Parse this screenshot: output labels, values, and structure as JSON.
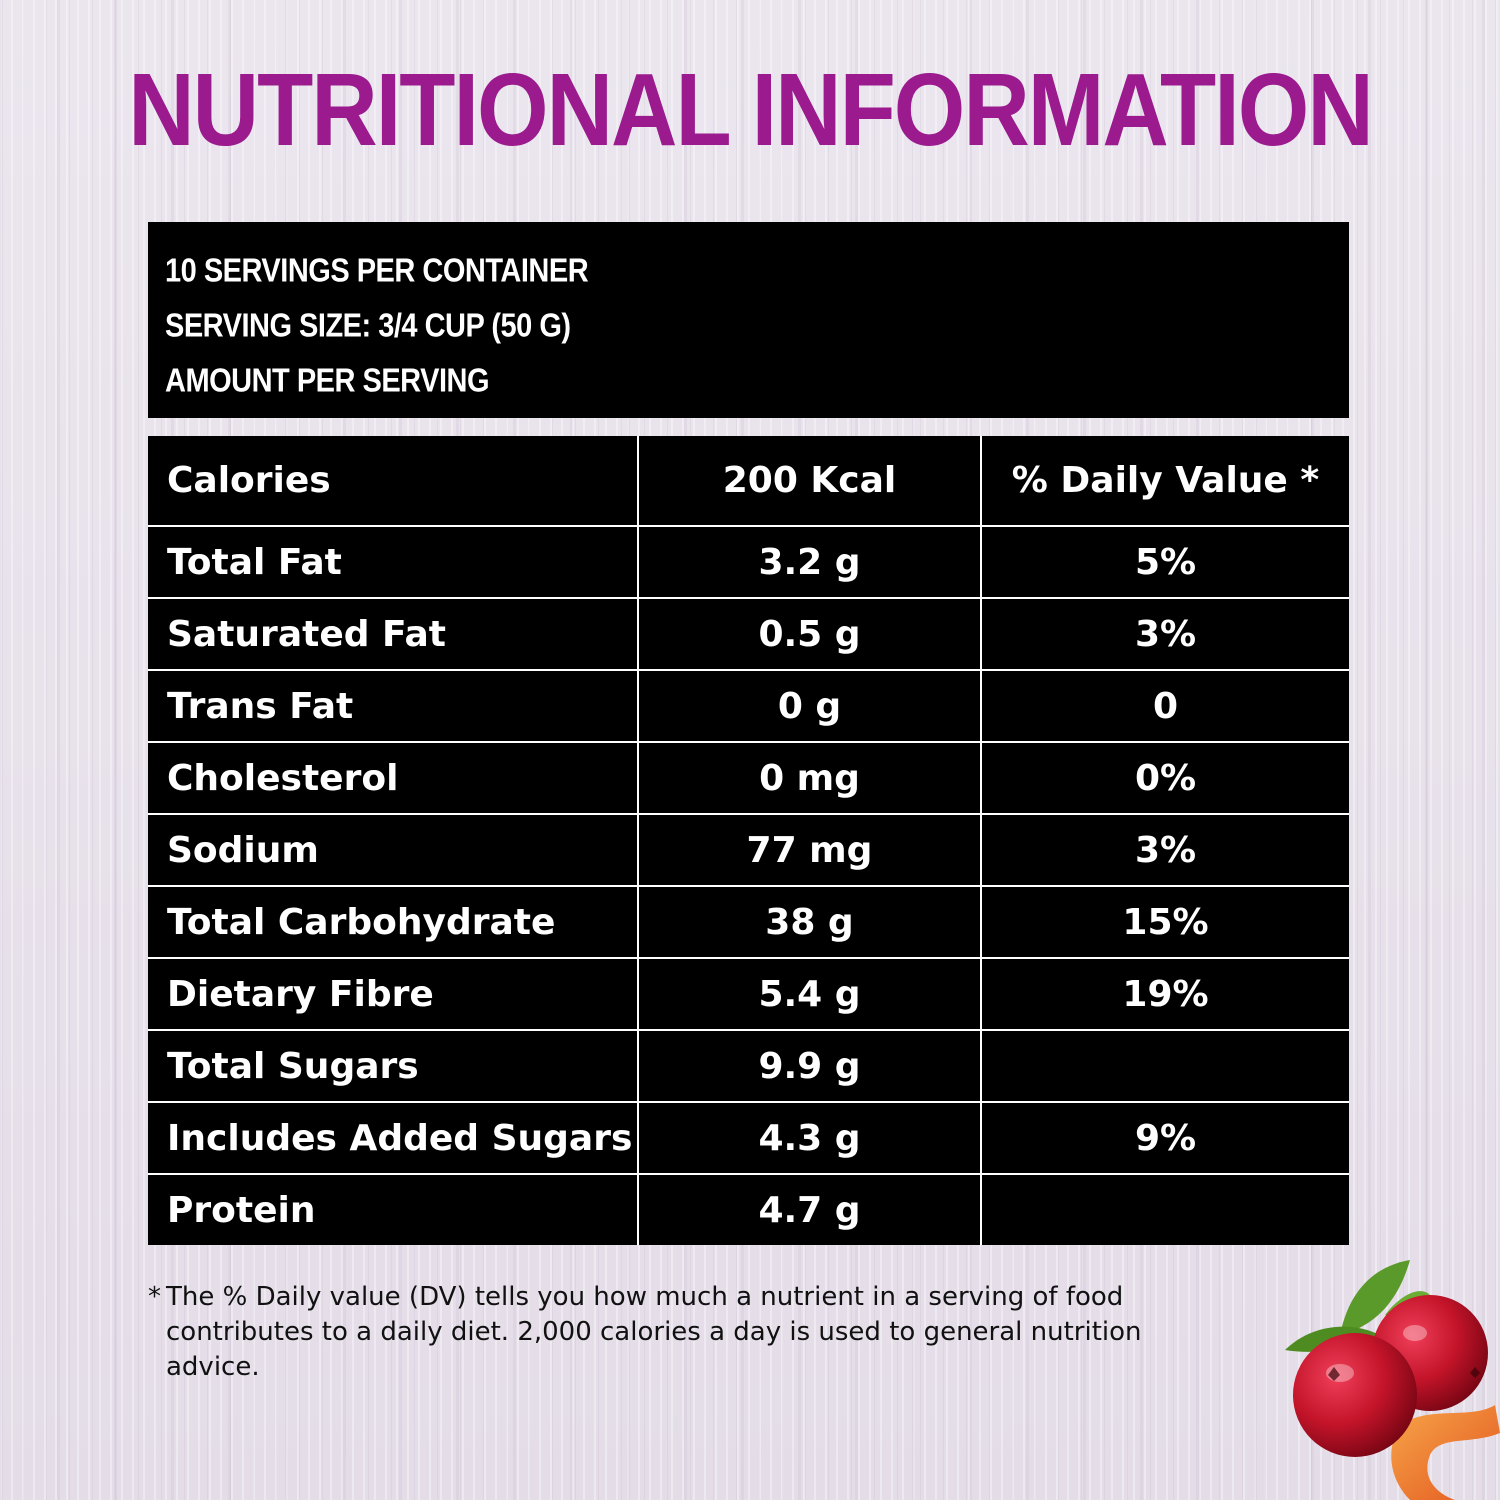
{
  "title": "NUTRITIONAL INFORMATION",
  "serving_info": {
    "servings_per_container": "10 SERVINGS PER CONTAINER",
    "serving_size": "SERVING SIZE: 3/4 CUP (50 G)",
    "amount_per_serving": "AMOUNT PER SERVING"
  },
  "table": {
    "header": {
      "name": "Calories",
      "amount": "200 Kcal",
      "dv": "% Daily Value *"
    },
    "rows": [
      {
        "name": "Total Fat",
        "amount": "3.2 g",
        "dv": "5%"
      },
      {
        "name": "Saturated Fat",
        "amount": "0.5 g",
        "dv": "3%"
      },
      {
        "name": "Trans Fat",
        "amount": "0 g",
        "dv": "0"
      },
      {
        "name": "Cholesterol",
        "amount": "0 mg",
        "dv": "0%"
      },
      {
        "name": "Sodium",
        "amount": "77 mg",
        "dv": "3%"
      },
      {
        "name": "Total Carbohydrate",
        "amount": "38 g",
        "dv": "15%"
      },
      {
        "name": "Dietary Fibre",
        "amount": "5.4 g",
        "dv": "19%"
      },
      {
        "name": "Total Sugars",
        "amount": "9.9 g",
        "dv": ""
      },
      {
        "name": "Includes Added Sugars",
        "amount": "4.3 g",
        "dv": "9%"
      },
      {
        "name": "Protein",
        "amount": "4.7 g",
        "dv": ""
      }
    ]
  },
  "footnote": {
    "marker": "*",
    "line1": "The % Daily value (DV) tells you how much a nutrient in a serving of food",
    "line2": "contributes to a daily diet. 2,000 calories a day is used to general nutrition",
    "line3": "advice."
  },
  "colors": {
    "title": "#9b1a8e",
    "table_bg": "#000000",
    "table_text": "#ffffff",
    "berry": "#c4142a",
    "leaf": "#5a9a2a"
  },
  "decoration": {
    "image": "cranberries-icon"
  }
}
